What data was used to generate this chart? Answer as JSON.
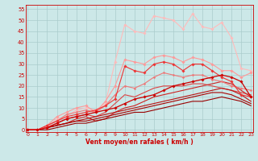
{
  "xlabel": "Vent moyen/en rafales ( km/h )",
  "background_color": "#cce8e8",
  "grid_color": "#aacccc",
  "x_ticks": [
    0,
    1,
    2,
    3,
    4,
    5,
    6,
    7,
    8,
    9,
    10,
    11,
    12,
    13,
    14,
    15,
    16,
    17,
    18,
    19,
    20,
    21,
    22,
    23
  ],
  "y_ticks": [
    0,
    5,
    10,
    15,
    20,
    25,
    30,
    35,
    40,
    45,
    50,
    55
  ],
  "ylim": [
    -1,
    57
  ],
  "xlim": [
    -0.2,
    23.2
  ],
  "lines": [
    {
      "x": [
        0,
        1,
        2,
        3,
        4,
        5,
        6,
        7,
        8,
        9,
        10,
        11,
        12,
        13,
        14,
        15,
        16,
        17,
        18,
        19,
        20,
        21,
        22,
        23
      ],
      "y": [
        0,
        0,
        1,
        5,
        6,
        9,
        10,
        9,
        12,
        31,
        48,
        45,
        44,
        52,
        51,
        50,
        46,
        53,
        47,
        46,
        49,
        42,
        28,
        27
      ],
      "color": "#ffbbbb",
      "linewidth": 0.8,
      "marker": "D",
      "markersize": 1.8,
      "zorder": 4
    },
    {
      "x": [
        0,
        1,
        2,
        3,
        4,
        5,
        6,
        7,
        8,
        9,
        10,
        11,
        12,
        13,
        14,
        15,
        16,
        17,
        18,
        19,
        20,
        21,
        22,
        23
      ],
      "y": [
        0,
        0,
        2,
        6,
        8,
        10,
        11,
        8,
        13,
        20,
        32,
        31,
        30,
        33,
        34,
        33,
        31,
        33,
        32,
        30,
        27,
        27,
        24,
        26
      ],
      "color": "#ff9999",
      "linewidth": 0.8,
      "marker": "D",
      "markersize": 1.8,
      "zorder": 4
    },
    {
      "x": [
        0,
        1,
        2,
        3,
        4,
        5,
        6,
        7,
        8,
        9,
        10,
        11,
        12,
        13,
        14,
        15,
        16,
        17,
        18,
        19,
        20,
        21,
        22,
        23
      ],
      "y": [
        0,
        0,
        2,
        4,
        7,
        8,
        9,
        8,
        11,
        16,
        20,
        19,
        21,
        24,
        26,
        25,
        24,
        25,
        25,
        23,
        22,
        20,
        19,
        18
      ],
      "color": "#ee7777",
      "linewidth": 0.8,
      "marker": "D",
      "markersize": 1.5,
      "zorder": 4
    },
    {
      "x": [
        0,
        1,
        2,
        3,
        4,
        5,
        6,
        7,
        8,
        9,
        10,
        11,
        12,
        13,
        14,
        15,
        16,
        17,
        18,
        19,
        20,
        21,
        22,
        23
      ],
      "y": [
        0,
        0,
        2,
        4,
        6,
        7,
        8,
        9,
        11,
        14,
        29,
        27,
        26,
        30,
        31,
        30,
        27,
        30,
        30,
        27,
        24,
        22,
        16,
        15
      ],
      "color": "#ee3333",
      "linewidth": 0.8,
      "marker": "D",
      "markersize": 1.8,
      "zorder": 5
    },
    {
      "x": [
        0,
        1,
        2,
        3,
        4,
        5,
        6,
        7,
        8,
        9,
        10,
        11,
        12,
        13,
        14,
        15,
        16,
        17,
        18,
        19,
        20,
        21,
        22,
        23
      ],
      "y": [
        0,
        0,
        1,
        3,
        5,
        6,
        7,
        6,
        8,
        12,
        16,
        15,
        17,
        19,
        20,
        20,
        20,
        21,
        21,
        20,
        19,
        18,
        17,
        16
      ],
      "color": "#dd4444",
      "linewidth": 0.8,
      "marker": null,
      "markersize": 0,
      "zorder": 3
    },
    {
      "x": [
        0,
        1,
        2,
        3,
        4,
        5,
        6,
        7,
        8,
        9,
        10,
        11,
        12,
        13,
        14,
        15,
        16,
        17,
        18,
        19,
        20,
        21,
        22,
        23
      ],
      "y": [
        0,
        0,
        1,
        3,
        5,
        6,
        7,
        8,
        9,
        10,
        12,
        14,
        15,
        16,
        18,
        20,
        21,
        22,
        23,
        24,
        25,
        24,
        22,
        15
      ],
      "color": "#cc0000",
      "linewidth": 0.9,
      "marker": "D",
      "markersize": 1.8,
      "zorder": 5
    },
    {
      "x": [
        0,
        1,
        2,
        3,
        4,
        5,
        6,
        7,
        8,
        9,
        10,
        11,
        12,
        13,
        14,
        15,
        16,
        17,
        18,
        19,
        20,
        21,
        22,
        23
      ],
      "y": [
        0,
        0,
        1,
        2,
        3,
        5,
        6,
        4,
        5,
        8,
        10,
        11,
        13,
        15,
        16,
        17,
        18,
        19,
        20,
        21,
        22,
        21,
        18,
        15
      ],
      "color": "#cc2222",
      "linewidth": 0.8,
      "marker": null,
      "markersize": 0,
      "zorder": 3
    },
    {
      "x": [
        0,
        1,
        2,
        3,
        4,
        5,
        6,
        7,
        8,
        9,
        10,
        11,
        12,
        13,
        14,
        15,
        16,
        17,
        18,
        19,
        20,
        21,
        22,
        23
      ],
      "y": [
        0,
        0,
        1,
        2,
        3,
        4,
        5,
        6,
        7,
        8,
        9,
        10,
        11,
        12,
        13,
        14,
        15,
        16,
        17,
        18,
        19,
        18,
        16,
        13
      ],
      "color": "#bb1111",
      "linewidth": 0.8,
      "marker": null,
      "markersize": 0,
      "zorder": 3
    },
    {
      "x": [
        0,
        1,
        2,
        3,
        4,
        5,
        6,
        7,
        8,
        9,
        10,
        11,
        12,
        13,
        14,
        15,
        16,
        17,
        18,
        19,
        20,
        21,
        22,
        23
      ],
      "y": [
        0,
        0,
        1,
        2,
        3,
        4,
        4,
        5,
        6,
        7,
        8,
        9,
        10,
        11,
        12,
        13,
        14,
        15,
        16,
        17,
        17,
        16,
        14,
        12
      ],
      "color": "#aa0000",
      "linewidth": 0.8,
      "marker": null,
      "markersize": 0,
      "zorder": 3
    },
    {
      "x": [
        0,
        1,
        2,
        3,
        4,
        5,
        6,
        7,
        8,
        9,
        10,
        11,
        12,
        13,
        14,
        15,
        16,
        17,
        18,
        19,
        20,
        21,
        22,
        23
      ],
      "y": [
        0,
        0,
        0,
        1,
        2,
        3,
        3,
        4,
        5,
        6,
        7,
        8,
        8,
        9,
        10,
        11,
        12,
        13,
        13,
        14,
        15,
        14,
        13,
        11
      ],
      "color": "#990000",
      "linewidth": 0.8,
      "marker": null,
      "markersize": 0,
      "zorder": 3
    }
  ]
}
